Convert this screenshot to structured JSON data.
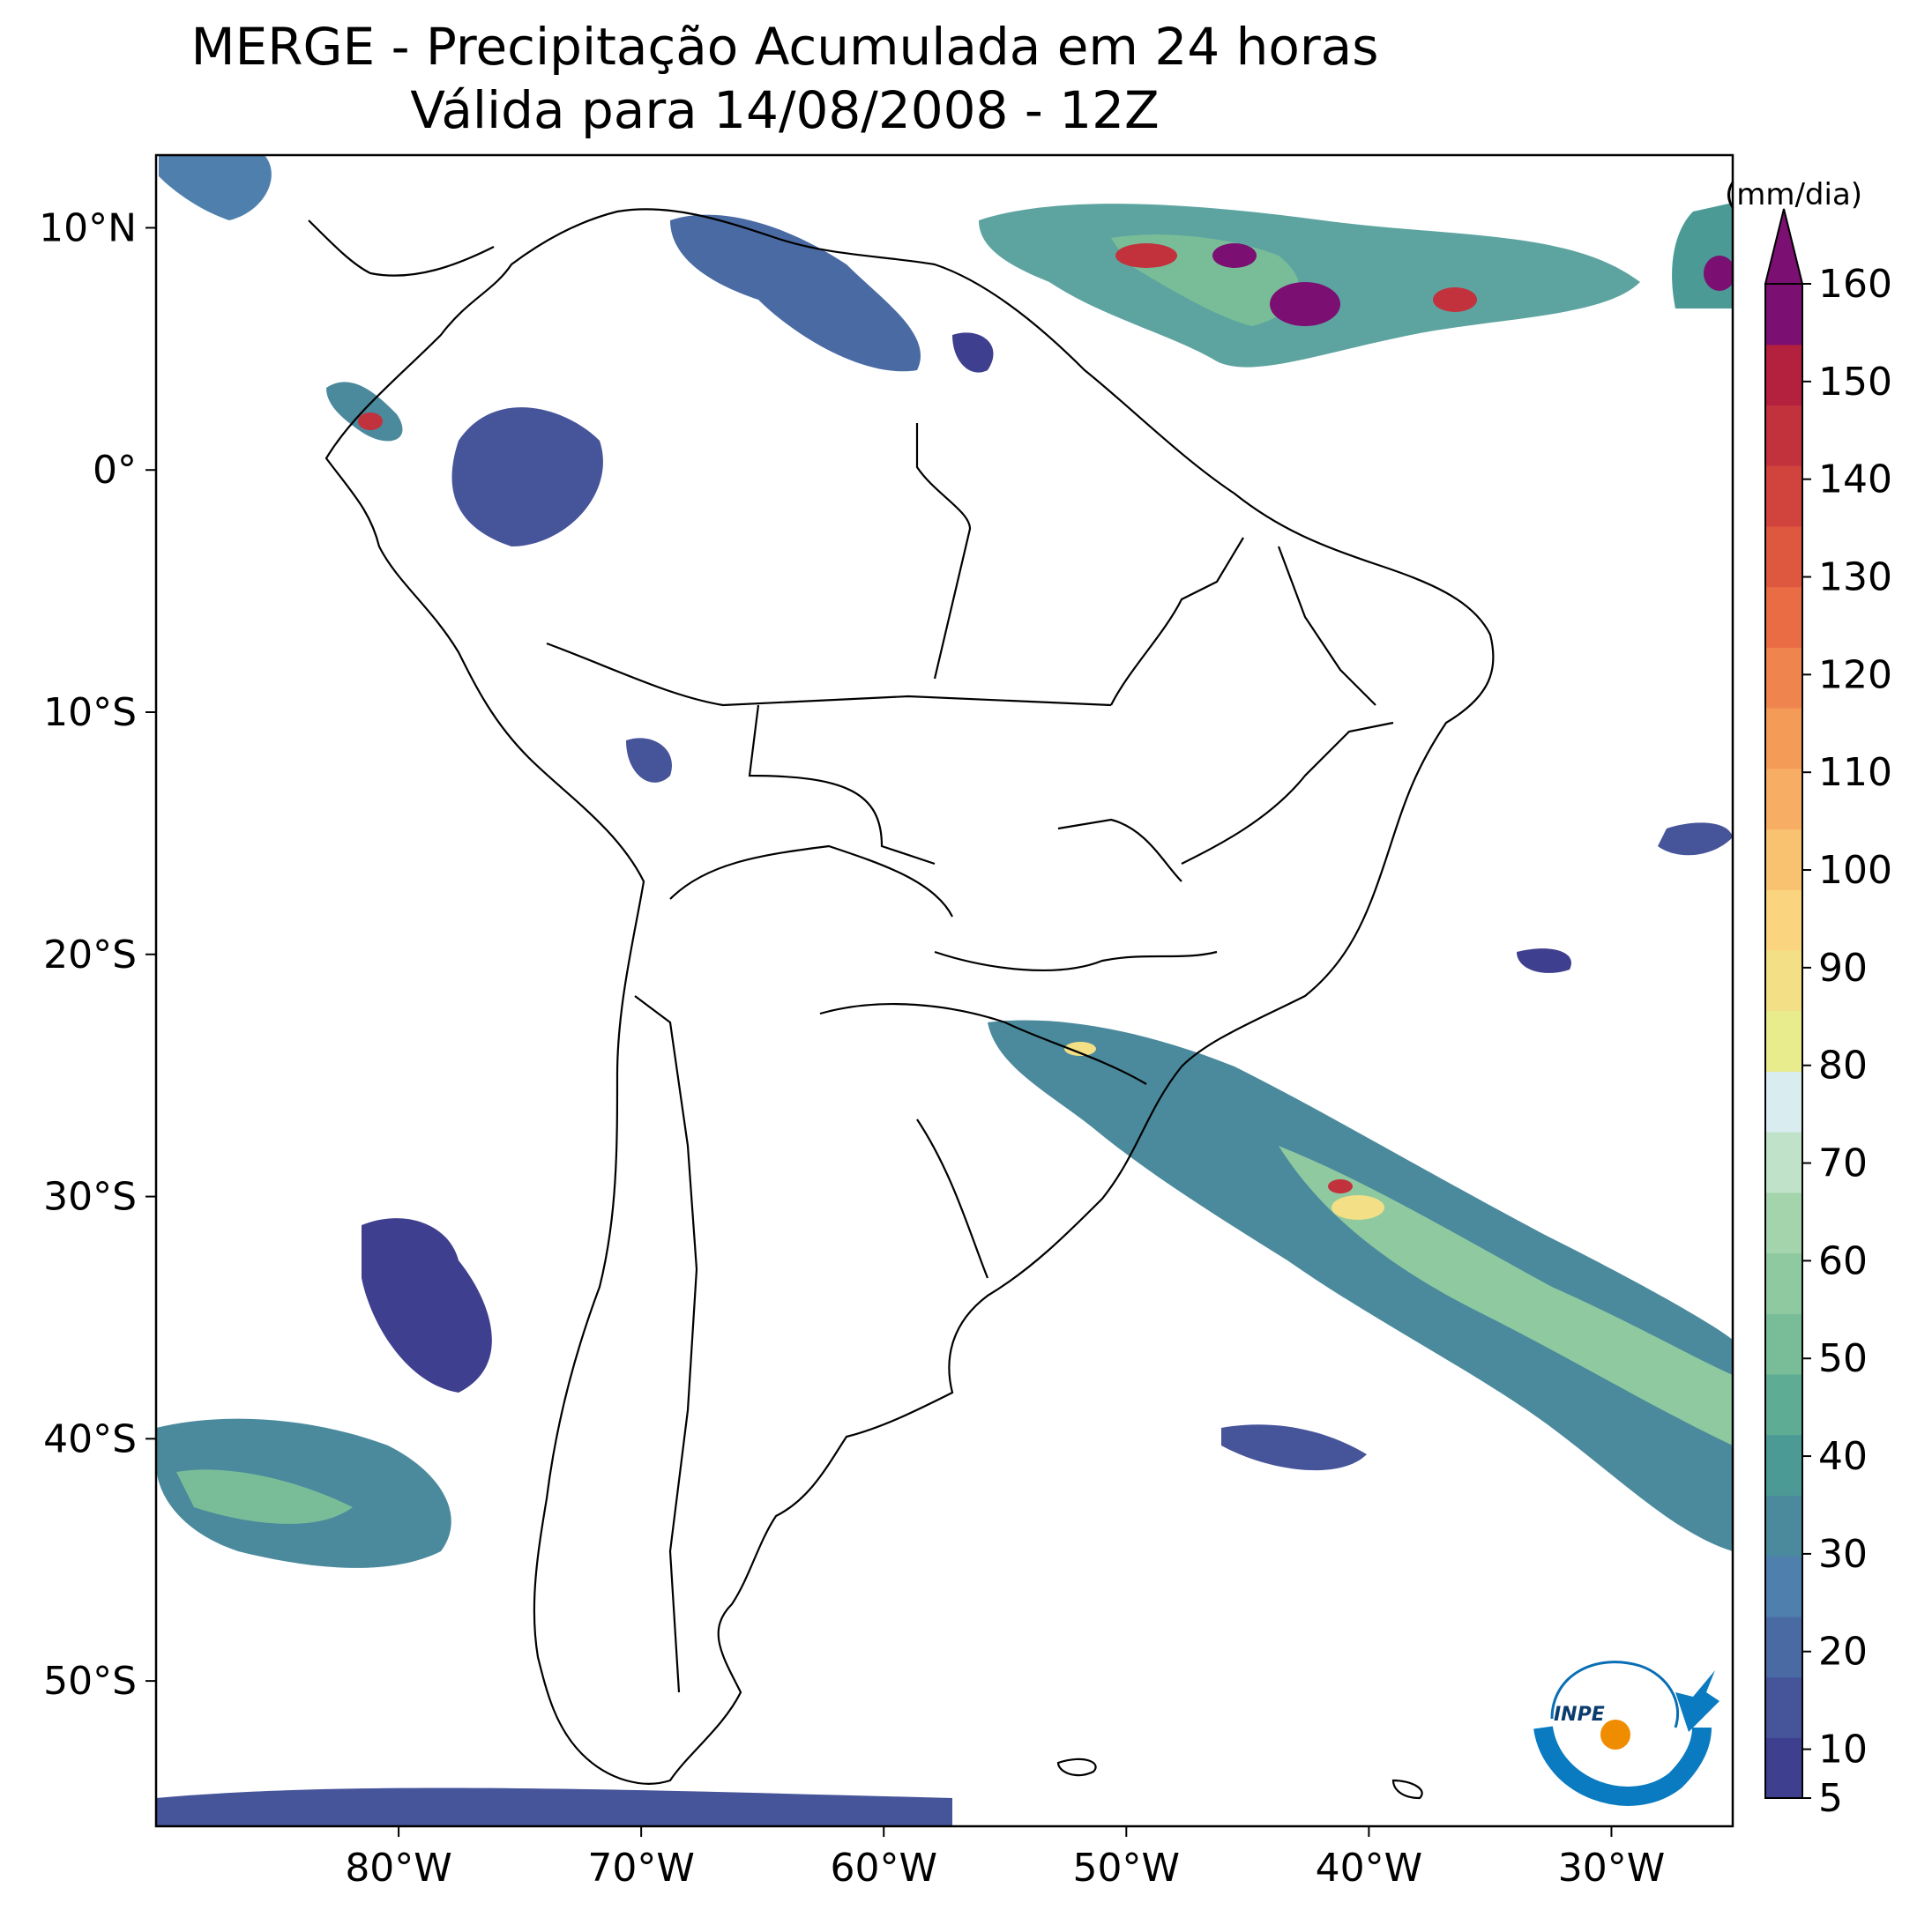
{
  "title": {
    "line1": "MERGE - Precipitação Acumulada em 24 horas",
    "line2": "Válida para 14/08/2008 - 12Z"
  },
  "map": {
    "lon_range": [
      -90,
      -25
    ],
    "lat_range": [
      -56,
      13
    ],
    "lon_ticks": [
      {
        "value": -80,
        "label": "80°W"
      },
      {
        "value": -70,
        "label": "70°W"
      },
      {
        "value": -60,
        "label": "60°W"
      },
      {
        "value": -50,
        "label": "50°W"
      },
      {
        "value": -40,
        "label": "40°W"
      },
      {
        "value": -30,
        "label": "30°W"
      }
    ],
    "lat_ticks": [
      {
        "value": 10,
        "label": "10°N"
      },
      {
        "value": 0,
        "label": "0°"
      },
      {
        "value": -10,
        "label": "10°S"
      },
      {
        "value": -20,
        "label": "20°S"
      },
      {
        "value": -30,
        "label": "30°S"
      },
      {
        "value": -40,
        "label": "40°S"
      },
      {
        "value": -50,
        "label": "50°S"
      }
    ]
  },
  "colorbar": {
    "units": "(mm/dia)",
    "min": 5,
    "max": 160,
    "extend": "max",
    "tick_labels": [
      "5",
      "10",
      "20",
      "30",
      "40",
      "50",
      "60",
      "70",
      "80",
      "90",
      "100",
      "110",
      "120",
      "130",
      "140",
      "150",
      "160"
    ],
    "colors": [
      "#3f3f8f",
      "#46549a",
      "#4a6aa4",
      "#4f80ad",
      "#4a8a9c",
      "#4b9a96",
      "#5fac95",
      "#79bd98",
      "#8ec9a0",
      "#a3d4ac",
      "#bfe2c9",
      "#d9ecef",
      "#e8ec8d",
      "#f3df86",
      "#fad47e",
      "#f8c270",
      "#f7ad63",
      "#f49b58",
      "#f0844e",
      "#e96c44",
      "#de573f",
      "#d1443d",
      "#c2323d",
      "#b3213f",
      "#7b0f72"
    ]
  },
  "logo": {
    "text": "INPE"
  }
}
